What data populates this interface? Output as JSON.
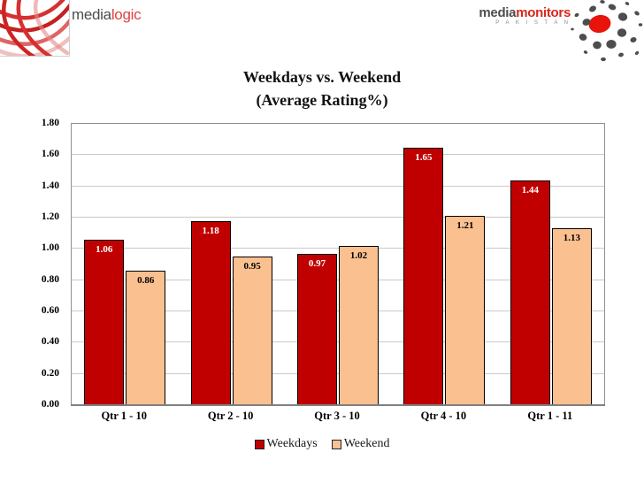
{
  "header": {
    "medialogic": {
      "media": "media",
      "logic": "logic"
    },
    "mediamonitors": {
      "media": "media",
      "monitors": "monitors",
      "country": "P A K I S T A N"
    }
  },
  "chart_data": {
    "type": "bar",
    "title_line1": "Weekdays vs. Weekend",
    "title_line2": "(Average Rating%)",
    "categories": [
      "Qtr 1 - 10",
      "Qtr 2 - 10",
      "Qtr 3 - 10",
      "Qtr 4 - 10",
      "Qtr 1 - 11"
    ],
    "series": [
      {
        "name": "Weekdays",
        "values": [
          1.06,
          1.18,
          0.97,
          1.65,
          1.44
        ],
        "color": "#c00000",
        "label_color": "#ffffff"
      },
      {
        "name": "Weekend",
        "values": [
          0.86,
          0.95,
          1.02,
          1.21,
          1.13
        ],
        "color": "#fac090",
        "label_color": "#000000"
      }
    ],
    "ylim": [
      0,
      1.8
    ],
    "ytick_step": 0.2,
    "yticks": [
      "1.80",
      "1.60",
      "1.40",
      "1.20",
      "1.00",
      "0.80",
      "0.60",
      "0.40",
      "0.20",
      "0.00"
    ],
    "grid": true,
    "legend_position": "bottom",
    "label_format": "0.00"
  },
  "colors": {
    "weekdays": "#c00000",
    "weekend": "#fac090",
    "gridline": "#c9c9c9",
    "plot_border": "#909090",
    "logo_red": "#e8140c",
    "logo_gray": "#4d4d4f"
  }
}
